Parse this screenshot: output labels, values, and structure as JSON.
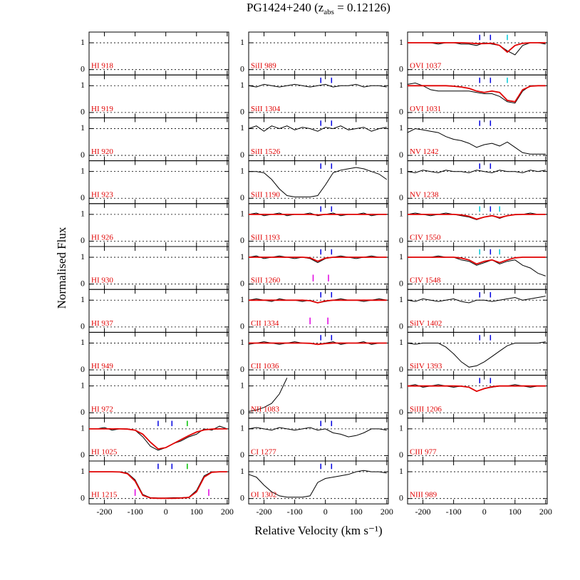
{
  "chart_data": {
    "type": "line",
    "title": "PG1424+240 (z",
    "title_sub": "abs",
    "title_end": " = 0.12126)",
    "x_label": "Relative Velocity (km s⁻¹)",
    "y_label": "Normalised Flux",
    "xlim": [
      -250,
      205
    ],
    "ylim": [
      -0.2,
      1.4
    ],
    "xticks": [
      -200,
      -100,
      0,
      100,
      200
    ],
    "yticks": [
      0,
      1
    ],
    "x": [
      -250,
      -225,
      -200,
      -175,
      -150,
      -125,
      -100,
      -75,
      -50,
      -25,
      0,
      25,
      50,
      75,
      100,
      125,
      150,
      175,
      200
    ],
    "data_color": "#000000",
    "fit_color": "#e00000",
    "panels": [
      {
        "label": "HI 918"
      },
      {
        "label": "HI 919"
      },
      {
        "label": "HI 920"
      },
      {
        "label": "HI 923"
      },
      {
        "label": "HI 926"
      },
      {
        "label": "HI 930"
      },
      {
        "label": "HI 937"
      },
      {
        "label": "HI 949"
      },
      {
        "label": "HI 972"
      },
      {
        "label": "HI 1025",
        "flux": [
          1.0,
          1.0,
          1.05,
          0.95,
          1.0,
          1.0,
          0.95,
          0.7,
          0.35,
          0.2,
          0.3,
          0.45,
          0.55,
          0.7,
          0.8,
          1.0,
          0.95,
          1.1,
          1.0
        ],
        "fit": [
          1,
          1,
          1,
          1,
          1,
          0.99,
          0.95,
          0.8,
          0.5,
          0.25,
          0.3,
          0.45,
          0.6,
          0.75,
          0.88,
          0.96,
          0.99,
          1,
          1
        ],
        "markers": [
          {
            "v": -25,
            "color": "#0000e0",
            "pos": "top"
          },
          {
            "v": 20,
            "color": "#0000e0",
            "pos": "top"
          },
          {
            "v": 70,
            "color": "#00c000",
            "pos": "top"
          }
        ]
      },
      {
        "label": "HI 1215",
        "flux": [
          1,
          1,
          1,
          1,
          1,
          0.95,
          0.7,
          0.15,
          0.03,
          0.02,
          0.02,
          0.03,
          0.03,
          0.05,
          0.3,
          0.85,
          1,
          1,
          1
        ],
        "fit": [
          1,
          1,
          1,
          1,
          0.99,
          0.93,
          0.65,
          0.12,
          0.02,
          0.01,
          0.01,
          0.01,
          0.02,
          0.04,
          0.25,
          0.8,
          0.98,
          1,
          1
        ],
        "markers": [
          {
            "v": -25,
            "color": "#0000e0",
            "pos": "top"
          },
          {
            "v": 20,
            "color": "#0000e0",
            "pos": "top"
          },
          {
            "v": 70,
            "color": "#00c000",
            "pos": "top"
          },
          {
            "v": -100,
            "color": "#e000e0",
            "pos": "bottom"
          },
          {
            "v": 140,
            "color": "#e000e0",
            "pos": "bottom"
          }
        ]
      },
      {
        "label": "SiII 989"
      },
      {
        "label": "SiII 1304",
        "flux": [
          1.0,
          0.95,
          1.05,
          1.0,
          0.95,
          1.0,
          1.05,
          1.0,
          0.95,
          1.0,
          1.05,
          0.95,
          1.0,
          1.0,
          1.05,
          0.95,
          1.0,
          1.0,
          0.95
        ],
        "markers": [
          {
            "v": -15,
            "color": "#0000e0",
            "pos": "top"
          },
          {
            "v": 20,
            "color": "#0000e0",
            "pos": "top"
          }
        ]
      },
      {
        "label": "SiII 1526",
        "flux": [
          1.0,
          1.1,
          0.9,
          1.1,
          1.0,
          1.1,
          0.95,
          1.05,
          1.0,
          0.9,
          1.05,
          1.0,
          1.1,
          0.95,
          1.0,
          1.05,
          0.9,
          1.0,
          1.05
        ],
        "markers": [
          {
            "v": -15,
            "color": "#0000e0",
            "pos": "top"
          },
          {
            "v": 20,
            "color": "#0000e0",
            "pos": "top"
          }
        ]
      },
      {
        "label": "SiII 1190",
        "flux": [
          1.0,
          1.0,
          0.95,
          0.7,
          0.35,
          0.1,
          0.05,
          0.05,
          0.05,
          0.1,
          0.5,
          0.95,
          1.05,
          1.1,
          1.15,
          1.1,
          1.0,
          0.9,
          0.7
        ],
        "markers": [
          {
            "v": -15,
            "color": "#0000e0",
            "pos": "top"
          },
          {
            "v": 20,
            "color": "#0000e0",
            "pos": "top"
          }
        ]
      },
      {
        "label": "SiII 1193",
        "flux": [
          1.0,
          1.05,
          0.95,
          1.0,
          1.05,
          0.95,
          1.0,
          1.0,
          1.05,
          0.95,
          1.0,
          1.05,
          0.95,
          1.0,
          1.0,
          1.05,
          0.95,
          1.0,
          1.0
        ],
        "fit": [
          1,
          1,
          1,
          1,
          1,
          1,
          1,
          1,
          1,
          0.98,
          1,
          1,
          1,
          1,
          1,
          1,
          1,
          1,
          1
        ],
        "markers": [
          {
            "v": -15,
            "color": "#0000e0",
            "pos": "top"
          },
          {
            "v": 20,
            "color": "#0000e0",
            "pos": "top"
          }
        ]
      },
      {
        "label": "SiII 1260",
        "flux": [
          1,
          1.05,
          0.95,
          1,
          1.05,
          1,
          0.95,
          1,
          0.95,
          0.8,
          0.95,
          1,
          1.05,
          1,
          0.95,
          1,
          1.05,
          1,
          1
        ],
        "fit": [
          1,
          1,
          1,
          1,
          1,
          1,
          1,
          1,
          0.98,
          0.85,
          0.97,
          1,
          1,
          1,
          1,
          1,
          1,
          1,
          1
        ],
        "markers": [
          {
            "v": -15,
            "color": "#0000e0",
            "pos": "top"
          },
          {
            "v": 20,
            "color": "#0000e0",
            "pos": "top"
          },
          {
            "v": -40,
            "color": "#e000e0",
            "pos": "bottom"
          },
          {
            "v": 10,
            "color": "#e000e0",
            "pos": "bottom"
          }
        ]
      },
      {
        "label": "CII 1334",
        "flux": [
          1,
          1.05,
          1,
          0.95,
          1.05,
          1,
          1,
          0.95,
          1,
          0.9,
          0.95,
          1,
          1.05,
          1,
          1,
          0.95,
          1,
          1.05,
          1
        ],
        "fit": [
          1,
          1,
          1,
          1,
          1,
          1,
          1,
          1,
          0.98,
          0.9,
          0.97,
          1,
          1,
          1,
          1,
          1,
          1,
          1,
          1
        ],
        "markers": [
          {
            "v": -15,
            "color": "#0000e0",
            "pos": "top"
          },
          {
            "v": 20,
            "color": "#0000e0",
            "pos": "top"
          },
          {
            "v": -50,
            "color": "#e000e0",
            "pos": "bottom"
          },
          {
            "v": 8,
            "color": "#e000e0",
            "pos": "bottom"
          }
        ]
      },
      {
        "label": "CII 1036",
        "flux": [
          0.95,
          1,
          1.05,
          1,
          0.95,
          1,
          1.05,
          1,
          1,
          0.95,
          1,
          1.05,
          0.95,
          1,
          1,
          1.05,
          0.95,
          1,
          1
        ],
        "fit": [
          1,
          1,
          1,
          1,
          1,
          1,
          1,
          1,
          0.99,
          0.95,
          0.98,
          1,
          1,
          1,
          1,
          1,
          1,
          1,
          1
        ],
        "markers": [
          {
            "v": -15,
            "color": "#0000e0",
            "pos": "top"
          },
          {
            "v": 20,
            "color": "#0000e0",
            "pos": "top"
          }
        ]
      },
      {
        "label": "NII 1083",
        "flux": [
          0.05,
          0.1,
          0.2,
          0.35,
          0.7,
          1.3,
          null,
          null,
          null,
          null,
          null,
          null,
          null,
          null,
          null,
          null,
          null,
          null,
          null
        ]
      },
      {
        "label": "CI 1277",
        "flux": [
          1.0,
          1.05,
          1.0,
          0.95,
          1.05,
          1.0,
          0.95,
          1.0,
          1.05,
          0.95,
          1.0,
          0.85,
          0.8,
          0.7,
          0.75,
          0.85,
          1.0,
          1.0,
          0.95
        ],
        "markers": [
          {
            "v": -15,
            "color": "#0000e0",
            "pos": "top"
          },
          {
            "v": 20,
            "color": "#0000e0",
            "pos": "top"
          }
        ]
      },
      {
        "label": "OI 1302",
        "flux": [
          0.9,
          0.8,
          0.5,
          0.25,
          0.1,
          0.05,
          0.05,
          0.05,
          0.1,
          0.6,
          0.75,
          0.8,
          0.85,
          0.9,
          1.0,
          1.05,
          1.0,
          1.0,
          0.95
        ],
        "markers": [
          {
            "v": -15,
            "color": "#0000e0",
            "pos": "top"
          },
          {
            "v": 20,
            "color": "#0000e0",
            "pos": "top"
          }
        ]
      },
      {
        "label": "OVI 1037",
        "flux": [
          1,
          1,
          1,
          1,
          0.95,
          1,
          1,
          0.95,
          0.95,
          0.9,
          1,
          0.95,
          0.9,
          0.7,
          0.55,
          0.9,
          1,
          1,
          0.95
        ],
        "fit": [
          1,
          1,
          1,
          1,
          1,
          1,
          1,
          1,
          0.99,
          0.97,
          0.97,
          0.98,
          0.9,
          0.65,
          0.9,
          0.98,
          1,
          1,
          1
        ],
        "markers": [
          {
            "v": -15,
            "color": "#0000e0",
            "pos": "top"
          },
          {
            "v": 20,
            "color": "#0000e0",
            "pos": "top"
          },
          {
            "v": 75,
            "color": "#00c8d8",
            "pos": "top"
          }
        ]
      },
      {
        "label": "OVI 1031",
        "flux": [
          1.05,
          1.1,
          1.0,
          0.85,
          0.8,
          0.8,
          0.8,
          0.8,
          0.8,
          0.75,
          0.7,
          0.7,
          0.6,
          0.4,
          0.35,
          0.8,
          1,
          1,
          1
        ],
        "fit": [
          1,
          1,
          1,
          1,
          1,
          1,
          0.98,
          0.95,
          0.9,
          0.8,
          0.75,
          0.8,
          0.75,
          0.45,
          0.4,
          0.85,
          0.98,
          1,
          1
        ],
        "markers": [
          {
            "v": -15,
            "color": "#0000e0",
            "pos": "top"
          },
          {
            "v": 20,
            "color": "#0000e0",
            "pos": "top"
          },
          {
            "v": 75,
            "color": "#00c8d8",
            "pos": "top"
          }
        ]
      },
      {
        "label": "NV 1242",
        "flux": [
          0.85,
          1.0,
          0.95,
          0.9,
          0.85,
          0.7,
          0.6,
          0.55,
          0.45,
          0.3,
          0.4,
          0.45,
          0.35,
          0.5,
          0.3,
          0.1,
          0.05,
          0.05,
          0.05
        ],
        "markers": [
          {
            "v": -15,
            "color": "#0000e0",
            "pos": "top"
          },
          {
            "v": 20,
            "color": "#0000e0",
            "pos": "top"
          }
        ]
      },
      {
        "label": "NV 1238",
        "flux": [
          1.0,
          0.95,
          1.05,
          1.0,
          0.95,
          1.05,
          1.0,
          1.0,
          0.95,
          1.05,
          1.0,
          0.95,
          1.05,
          1.0,
          1.0,
          0.95,
          1.05,
          1.0,
          1.05
        ],
        "markers": [
          {
            "v": -15,
            "color": "#0000e0",
            "pos": "top"
          },
          {
            "v": 20,
            "color": "#0000e0",
            "pos": "top"
          }
        ]
      },
      {
        "label": "CIV 1550",
        "flux": [
          1,
          1.05,
          1,
          0.95,
          1,
          1.05,
          1,
          0.95,
          0.9,
          0.8,
          0.9,
          0.95,
          0.85,
          0.95,
          1,
          1,
          1.05,
          1,
          1
        ],
        "fit": [
          1,
          1,
          1,
          1,
          1,
          1,
          1,
          0.98,
          0.93,
          0.82,
          0.9,
          0.95,
          0.88,
          0.95,
          0.99,
          1,
          1,
          1,
          1
        ],
        "markers": [
          {
            "v": -15,
            "color": "#00c8d8",
            "pos": "top"
          },
          {
            "v": 20,
            "color": "#0000e0",
            "pos": "top"
          },
          {
            "v": 50,
            "color": "#00c8d8",
            "pos": "top"
          }
        ]
      },
      {
        "label": "CIV 1548",
        "flux": [
          1.0,
          1.0,
          1.0,
          1.0,
          1.05,
          1.0,
          1.0,
          0.9,
          0.85,
          0.7,
          0.8,
          0.9,
          0.75,
          0.85,
          0.9,
          0.7,
          0.6,
          0.4,
          0.3
        ],
        "fit": [
          1,
          1,
          1,
          1,
          1,
          1,
          1,
          0.97,
          0.9,
          0.75,
          0.85,
          0.9,
          0.8,
          0.9,
          0.98,
          1,
          1,
          1,
          1
        ],
        "markers": [
          {
            "v": -15,
            "color": "#00c8d8",
            "pos": "top"
          },
          {
            "v": 20,
            "color": "#0000e0",
            "pos": "top"
          },
          {
            "v": 50,
            "color": "#00c8d8",
            "pos": "top"
          }
        ]
      },
      {
        "label": "SiIV 1402",
        "flux": [
          1,
          0.95,
          1.05,
          1,
          0.95,
          1,
          1.05,
          0.95,
          0.9,
          1,
          1,
          0.95,
          1.0,
          1.05,
          1.1,
          1.0,
          1.05,
          1.1,
          1.15
        ],
        "markers": [
          {
            "v": -15,
            "color": "#0000e0",
            "pos": "top"
          },
          {
            "v": 20,
            "color": "#0000e0",
            "pos": "top"
          }
        ]
      },
      {
        "label": "SiIV 1393",
        "flux": [
          1.0,
          0.95,
          1.0,
          1.0,
          1.0,
          0.85,
          0.6,
          0.3,
          0.1,
          0.15,
          0.3,
          0.5,
          0.7,
          0.9,
          1.0,
          1.0,
          1.0,
          1.0,
          1.05
        ],
        "markers": [
          {
            "v": -15,
            "color": "#0000e0",
            "pos": "top"
          },
          {
            "v": 20,
            "color": "#0000e0",
            "pos": "top"
          }
        ]
      },
      {
        "label": "SiIII 1206",
        "flux": [
          1,
          1.05,
          0.95,
          1,
          1.05,
          1,
          0.95,
          1,
          0.95,
          0.8,
          0.9,
          0.95,
          1,
          1,
          1.05,
          1,
          0.95,
          1,
          1
        ],
        "fit": [
          1,
          1,
          1,
          1,
          1,
          1,
          1,
          0.99,
          0.95,
          0.8,
          0.9,
          0.97,
          1,
          1,
          1,
          1,
          1,
          1,
          1
        ],
        "markers": [
          {
            "v": -15,
            "color": "#0000e0",
            "pos": "top"
          },
          {
            "v": 20,
            "color": "#0000e0",
            "pos": "top"
          }
        ]
      },
      {
        "label": "CIII 977"
      },
      {
        "label": "NIII 989"
      }
    ]
  }
}
